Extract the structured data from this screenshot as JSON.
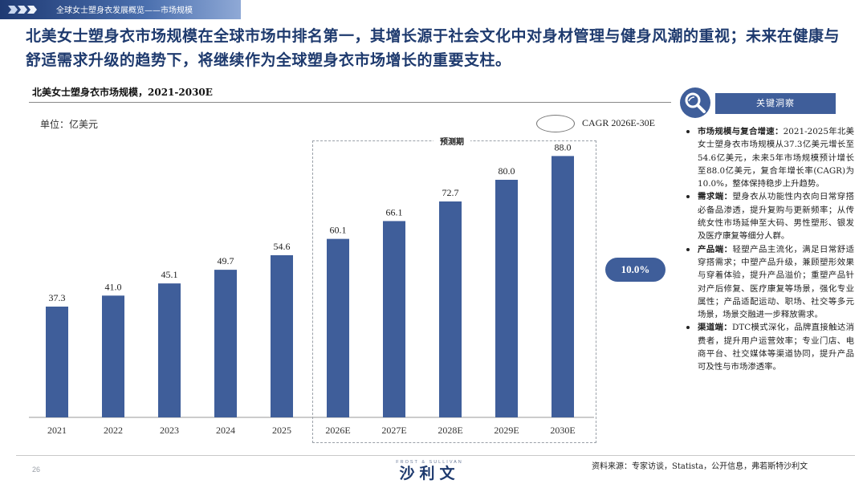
{
  "header": {
    "breadcrumb": "全球女士塑身衣发展概览——市场规模",
    "headline": "北美女士塑身衣市场规模在全球市场中排名第一，其增长源于社会文化中对身材管理与健身风潮的重视；未来在健康与舒适需求升级的趋势下，将继续作为全球塑身衣市场增长的重要支柱。"
  },
  "chart_data": {
    "type": "bar",
    "title": "北美女士塑身衣市场规模，2021-2030E",
    "unit": "单位：亿美元",
    "categories": [
      "2021",
      "2022",
      "2023",
      "2024",
      "2025",
      "2026E",
      "2027E",
      "2028E",
      "2029E",
      "2030E"
    ],
    "values": [
      37.3,
      41.0,
      45.1,
      49.7,
      54.6,
      60.1,
      66.1,
      72.7,
      80.0,
      88.0
    ],
    "value_labels": [
      "37.3",
      "41.0",
      "45.1",
      "49.7",
      "54.6",
      "60.1",
      "66.1",
      "72.7",
      "80.0",
      "88.0"
    ],
    "ylim": [
      0,
      100
    ],
    "bar_color": "#3f5e9a",
    "forecast_label": "预测期",
    "cagr_legend": "CAGR 2026E-30E",
    "cagr_value": "10.0%"
  },
  "insights": {
    "header": "关键洞察",
    "items": [
      {
        "key": "市场规模与复合增速：",
        "text": "2021-2025年北美女士塑身衣市场规模从37.3亿美元增长至54.6亿美元，未来5年市场规模预计增长至88.0亿美元，复合年增长率(CAGR)为10.0%，整体保持稳步上升趋势。"
      },
      {
        "key": "需求端：",
        "text": "塑身衣从功能性内衣向日常穿搭必备品渗透，提升复购与更新频率；从传统女性市场延伸至大码、男性塑形、银发及医疗康复等细分人群。"
      },
      {
        "key": "产品端：",
        "text": "轻塑产品主流化，满足日常舒适穿搭需求；中塑产品升级，兼顾塑形效果与穿着体验，提升产品溢价；重塑产品针对产后修复、医疗康复等场景，强化专业属性；产品适配运动、职场、社交等多元场景，场景交融进一步释放需求。"
      },
      {
        "key": "渠道端：",
        "text": "DTC模式深化，品牌直接触达消费者，提升用户运营效率；专业门店、电商平台、社交媒体等渠道协同，提升产品可及性与市场渗透率。"
      }
    ]
  },
  "footer": {
    "page_number": "26",
    "logo_en": "FROST & SULLIVAN",
    "logo_cn": "沙利文",
    "source": "资料来源：专家访谈，Statista，公开信息，弗若斯特沙利文"
  },
  "colors": {
    "accent": "#3f5e9a",
    "headline": "#1e3a6e"
  }
}
